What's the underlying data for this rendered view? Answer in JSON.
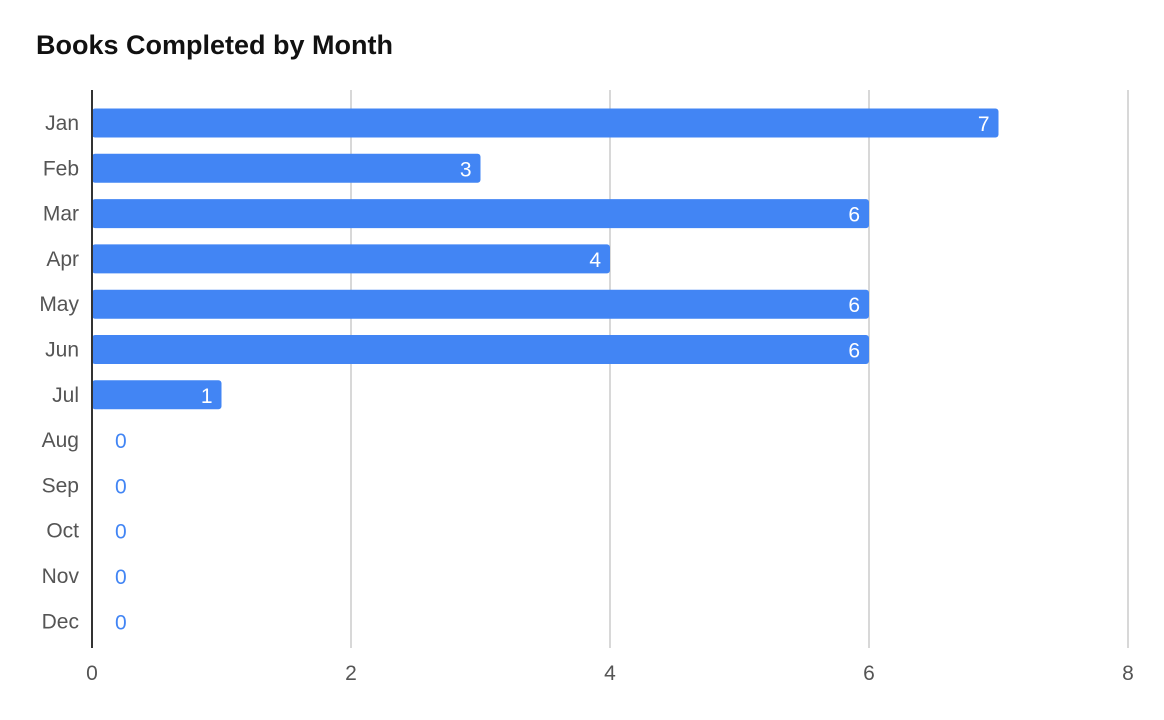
{
  "chart_data": {
    "type": "bar",
    "orientation": "horizontal",
    "title": "Books Completed by Month",
    "xlabel": "",
    "ylabel": "",
    "categories": [
      "Jan",
      "Feb",
      "Mar",
      "Apr",
      "May",
      "Jun",
      "Jul",
      "Aug",
      "Sep",
      "Oct",
      "Nov",
      "Dec"
    ],
    "values": [
      7,
      3,
      6,
      4,
      6,
      6,
      1,
      0,
      0,
      0,
      0,
      0
    ],
    "xlim": [
      0,
      8
    ],
    "x_ticks": [
      0,
      2,
      4,
      6,
      8
    ],
    "grid": "vertical",
    "legend": "none",
    "data_labels": true,
    "colors": {
      "bar": "#4285f4",
      "label_inside": "#ffffff",
      "label_outside": "#4285f4",
      "grid": "#cccccc",
      "axis": "#333333",
      "text": "#555555",
      "title": "#111111"
    }
  }
}
